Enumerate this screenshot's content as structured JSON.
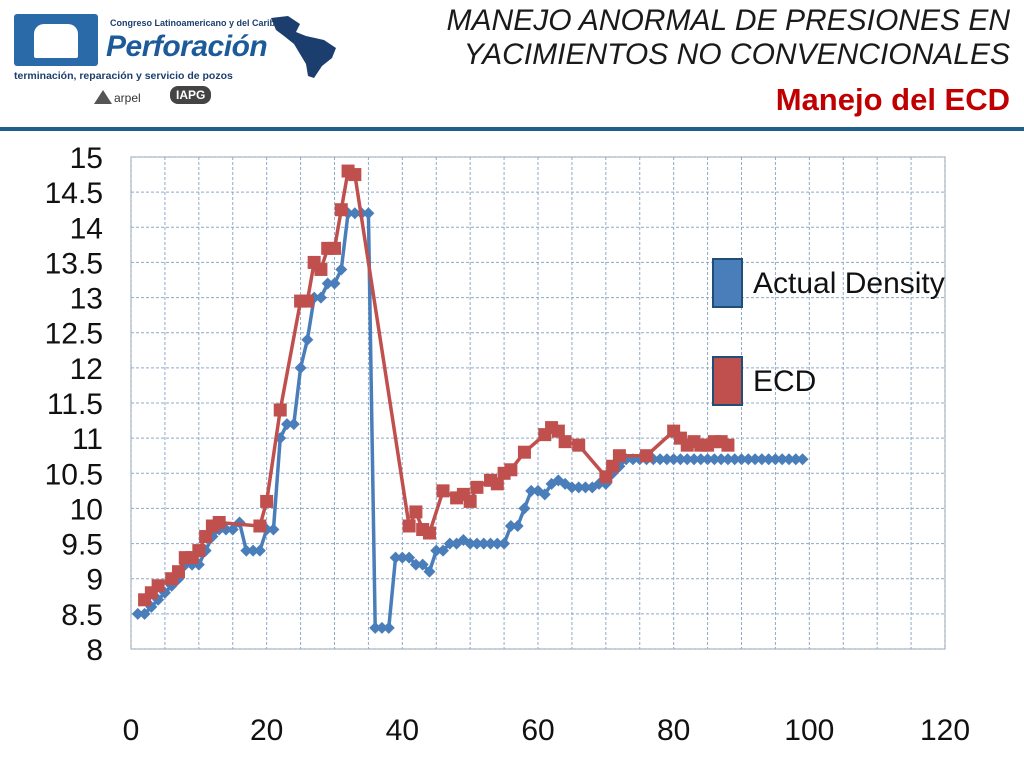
{
  "header": {
    "title_line1": "MANEJO ANORMAL DE PRESIONES EN",
    "title_line2": "YACIMIENTOS NO CONVENCIONALES",
    "subtitle": "Manejo del ECD",
    "logo": {
      "congress_text": "Congreso Latinoamericano y del Caribe de",
      "brand": "Perforación",
      "tagline": "terminación, reparación y servicio de pozos",
      "partner1": "arpel",
      "partner2": "IAPG"
    },
    "accent_color": "#1f5f8b",
    "subtitle_color": "#c00000"
  },
  "chart_data": {
    "type": "scatter",
    "xlim": [
      0,
      120
    ],
    "ylim": [
      8,
      15
    ],
    "xticks": [
      0,
      20,
      40,
      60,
      80,
      100,
      120
    ],
    "yticks": [
      8,
      8.5,
      9,
      9.5,
      10,
      10.5,
      11,
      11.5,
      12,
      12.5,
      13,
      13.5,
      14,
      14.5,
      15
    ],
    "grid": true,
    "legend_position": "right",
    "series": [
      {
        "name": "Actual Density",
        "color": "#4a7ebb",
        "marker": "diamond",
        "line": true,
        "x": [
          1,
          2,
          3,
          4,
          5,
          6,
          7,
          8,
          9,
          10,
          11,
          12,
          13,
          14,
          15,
          16,
          17,
          18,
          19,
          20,
          21,
          22,
          23,
          24,
          25,
          26,
          27,
          28,
          29,
          30,
          31,
          32,
          33,
          34,
          35,
          36,
          37,
          38,
          39,
          40,
          41,
          42,
          43,
          44,
          45,
          46,
          47,
          48,
          49,
          50,
          51,
          52,
          53,
          54,
          55,
          56,
          57,
          58,
          59,
          60,
          61,
          62,
          63,
          64,
          65,
          66,
          67,
          68,
          69,
          70,
          71,
          72,
          73,
          74,
          75,
          76,
          77,
          78,
          79,
          80,
          81,
          82,
          83,
          84,
          85,
          86,
          87,
          88,
          89,
          90,
          91,
          92,
          93,
          94,
          95,
          96,
          97,
          98,
          99
        ],
        "y": [
          8.5,
          8.5,
          8.6,
          8.7,
          8.8,
          8.9,
          9.0,
          9.2,
          9.2,
          9.2,
          9.4,
          9.6,
          9.7,
          9.7,
          9.7,
          9.8,
          9.4,
          9.4,
          9.4,
          9.7,
          9.7,
          11.0,
          11.2,
          11.2,
          12.0,
          12.4,
          13.0,
          13.0,
          13.2,
          13.2,
          13.4,
          14.2,
          14.2,
          14.2,
          14.2,
          8.3,
          8.3,
          8.3,
          9.3,
          9.3,
          9.3,
          9.2,
          9.2,
          9.1,
          9.4,
          9.4,
          9.5,
          9.5,
          9.55,
          9.5,
          9.5,
          9.5,
          9.5,
          9.5,
          9.5,
          9.75,
          9.75,
          10.0,
          10.25,
          10.25,
          10.2,
          10.35,
          10.4,
          10.35,
          10.3,
          10.3,
          10.3,
          10.3,
          10.35,
          10.35,
          10.5,
          10.6,
          10.7,
          10.7,
          10.7,
          10.7,
          10.7,
          10.7,
          10.7,
          10.7,
          10.7,
          10.7,
          10.7,
          10.7,
          10.7,
          10.7,
          10.7,
          10.7,
          10.7,
          10.7,
          10.7,
          10.7,
          10.7,
          10.7,
          10.7,
          10.7,
          10.7,
          10.7,
          10.7
        ]
      },
      {
        "name": "ECD",
        "color": "#c0504d",
        "marker": "square",
        "line": true,
        "x": [
          2,
          3,
          4,
          6,
          7,
          8,
          9,
          10,
          11,
          12,
          13,
          19,
          20,
          22,
          25,
          26,
          27,
          28,
          29,
          30,
          31,
          32,
          33,
          41,
          42,
          43,
          44,
          46,
          48,
          49,
          50,
          51,
          53,
          54,
          55,
          56,
          58,
          61,
          62,
          63,
          64,
          66,
          70,
          71,
          72,
          76,
          80,
          81,
          82,
          83,
          84,
          85,
          86,
          87,
          88
        ],
        "y": [
          8.7,
          8.8,
          8.9,
          9.0,
          9.1,
          9.3,
          9.3,
          9.4,
          9.6,
          9.75,
          9.8,
          9.75,
          10.1,
          11.4,
          12.95,
          12.95,
          13.5,
          13.4,
          13.7,
          13.7,
          14.25,
          14.8,
          14.75,
          9.75,
          9.95,
          9.7,
          9.65,
          10.25,
          10.15,
          10.2,
          10.1,
          10.3,
          10.4,
          10.35,
          10.5,
          10.55,
          10.8,
          11.05,
          11.15,
          11.1,
          10.95,
          10.9,
          10.45,
          10.6,
          10.75,
          10.75,
          11.1,
          11.0,
          10.9,
          10.95,
          10.9,
          10.9,
          10.95,
          10.95,
          10.9
        ]
      }
    ]
  }
}
